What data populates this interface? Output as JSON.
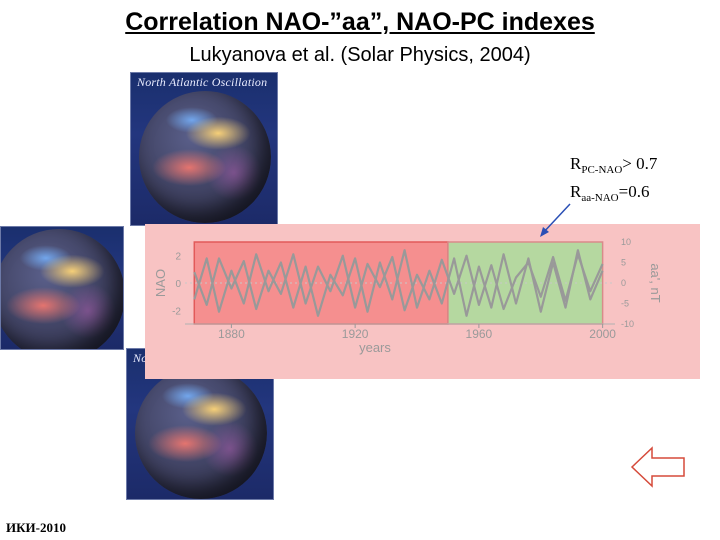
{
  "header": {
    "title": "Correlation NAO-”aa”, NAO-PC indexes",
    "subtitle": "Lukyanova et al. (Solar Physics, 2004)"
  },
  "maps": {
    "caption": "North Atlantic Oscillation"
  },
  "annotation": {
    "line1_main": "R",
    "line1_sub": "PC-NAO",
    "line1_tail": "> 0.7",
    "line2_main": "R",
    "line2_sub": "aa-NAO",
    "line2_tail": "=0.6"
  },
  "footer": {
    "text": "ИКИ-2010"
  },
  "colors": {
    "pink_panel": "#f8c3c3",
    "red_box": "#f58f8f",
    "green_box": "#b5d8a0",
    "curve": "#999999",
    "arrow": "#2a4fb5"
  },
  "chart_data": {
    "type": "line",
    "xlabel": "years",
    "ylabel_left": "NAO",
    "ylabel_right": "aa', nT",
    "x_ticks": [
      "1880",
      "1920",
      "1960",
      "2000"
    ],
    "x_range": [
      1865,
      2004
    ],
    "y_left_ticks": [
      "2",
      "0",
      "-2"
    ],
    "y_left_range": [
      -3,
      3
    ],
    "y_right_ticks": [
      "10",
      "5",
      "0",
      "-5",
      "-10"
    ],
    "y_right_range": [
      -10,
      10
    ],
    "highlight_ranges": [
      {
        "from": 1868,
        "to": 1950,
        "color": "#f58f8f"
      },
      {
        "from": 1950,
        "to": 2000,
        "color": "#b5d8a0"
      }
    ],
    "series": [
      {
        "axis": "left",
        "x": [
          1868,
          1872,
          1876,
          1880,
          1884,
          1888,
          1892,
          1896,
          1900,
          1904,
          1908,
          1912,
          1916,
          1920,
          1924,
          1928,
          1932,
          1936,
          1940,
          1944,
          1948,
          1952,
          1956,
          1960,
          1964,
          1968,
          1972,
          1976,
          1980,
          1984,
          1988,
          1992,
          1996,
          2000
        ],
        "values": [
          0.8,
          -1.6,
          1.8,
          -0.4,
          1.6,
          -1.9,
          0.9,
          -0.8,
          2.1,
          -1.5,
          1.2,
          -0.6,
          2.0,
          -1.8,
          1.4,
          -0.3,
          1.9,
          -2.0,
          0.6,
          -1.2,
          1.7,
          -0.8,
          2.0,
          -1.6,
          1.3,
          -1.9,
          0.4,
          1.5,
          -1.0,
          1.9,
          -1.3,
          2.1,
          -0.6,
          1.4
        ]
      },
      {
        "axis": "right",
        "x": [
          1868,
          1872,
          1876,
          1880,
          1884,
          1888,
          1892,
          1896,
          1900,
          1904,
          1908,
          1912,
          1916,
          1920,
          1924,
          1928,
          1932,
          1936,
          1940,
          1944,
          1948,
          1952,
          1956,
          1960,
          1964,
          1968,
          1972,
          1976,
          1980,
          1984,
          1988,
          1992,
          1996,
          2000
        ],
        "values": [
          -4,
          6,
          -7,
          3,
          -5,
          7,
          -2,
          5,
          -6,
          4,
          -8,
          2,
          -3,
          6,
          -7,
          5,
          -4,
          8,
          -6,
          3,
          -5,
          6,
          -8,
          4,
          -6,
          7,
          -5,
          6,
          -7,
          5,
          -6,
          8,
          -4,
          3
        ]
      }
    ]
  }
}
